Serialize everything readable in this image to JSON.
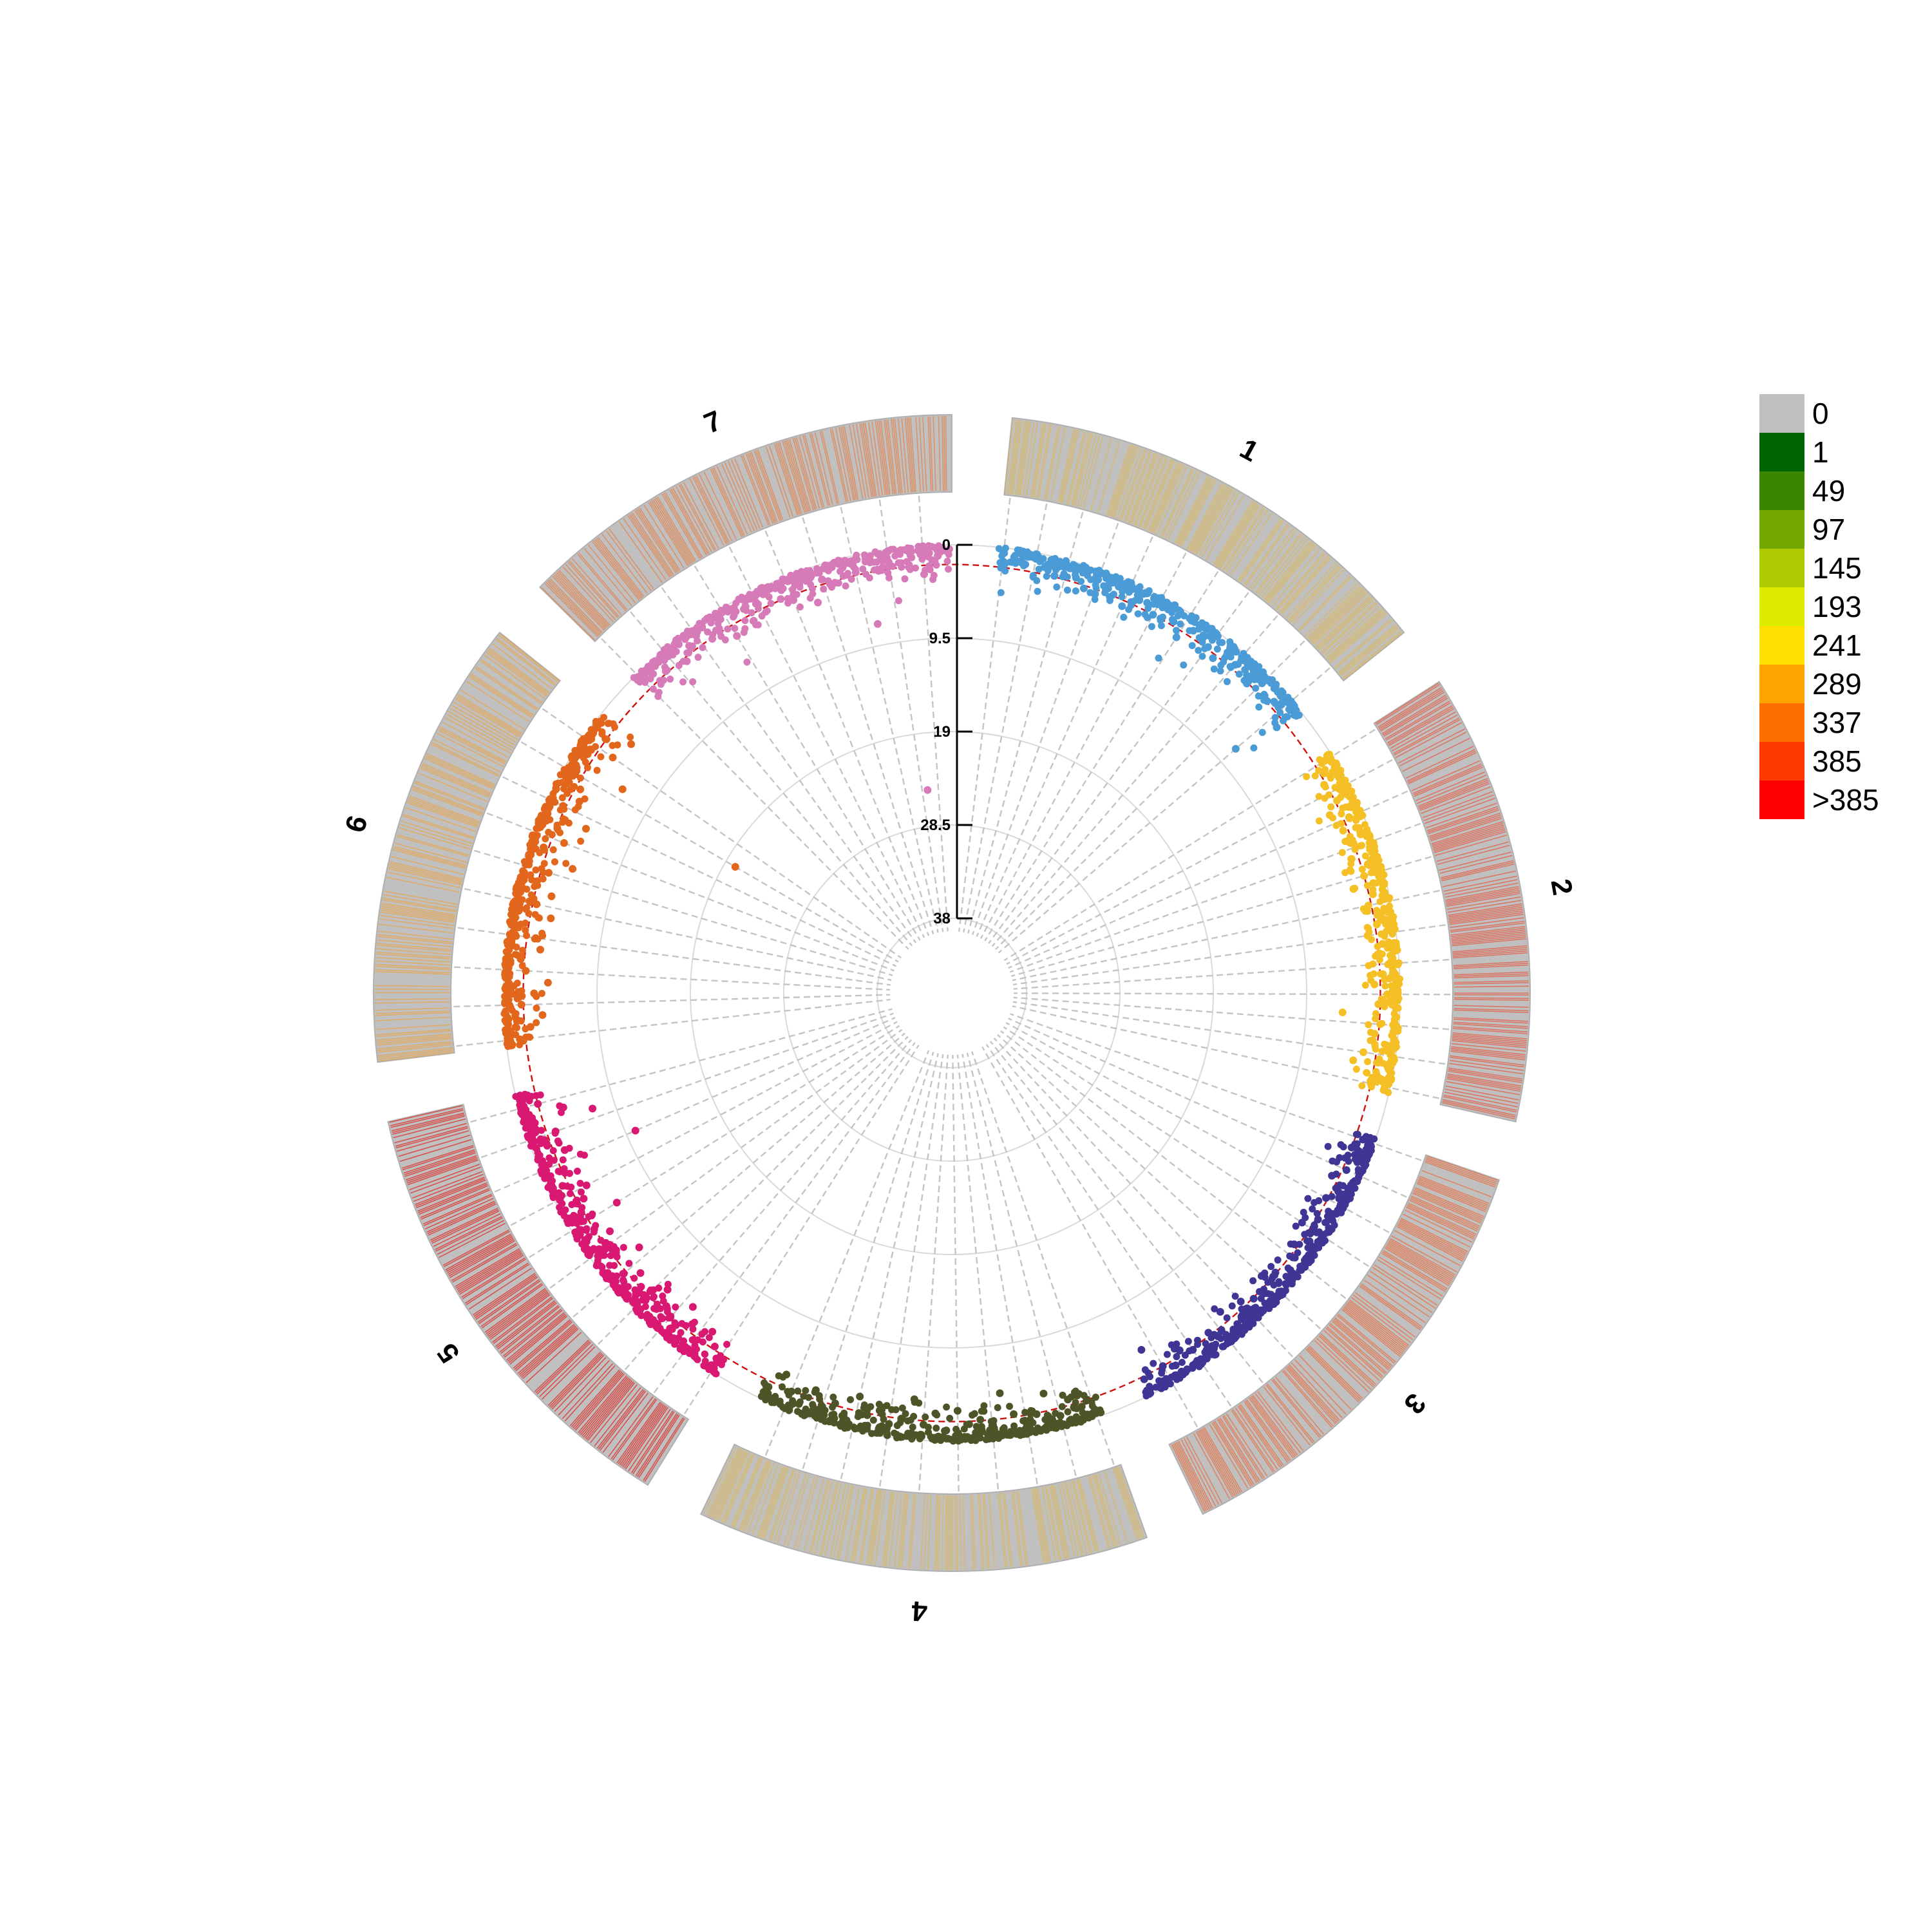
{
  "chart_data": {
    "type": "scatter",
    "subtype": "circular-manhattan",
    "title": "",
    "chromosomes": [
      {
        "name": "1",
        "color": "#4A9BD6",
        "density_color": "#D9B968"
      },
      {
        "name": "2",
        "color": "#F5C026",
        "density_color": "#E06A56"
      },
      {
        "name": "3",
        "color": "#3F3595",
        "density_color": "#E47A52"
      },
      {
        "name": "4",
        "color": "#4F5428",
        "density_color": "#D9B968"
      },
      {
        "name": "5",
        "color": "#D91872",
        "density_color": "#DA3F3A"
      },
      {
        "name": "6",
        "color": "#E2661C",
        "density_color": "#E4A85A"
      },
      {
        "name": "7",
        "color": "#D67BB8",
        "density_color": "#E08A5A"
      }
    ],
    "y_axis": {
      "ticks": [
        "0",
        "9.5",
        "19",
        "28.5",
        "38"
      ],
      "ylim": [
        0,
        38
      ],
      "inverted": true
    },
    "threshold": 2,
    "series": [
      {
        "name": "1",
        "values": [
          0.4,
          0.8,
          1.3,
          0.6,
          1.1,
          1.9,
          0.7,
          1.5,
          2.3,
          1.0,
          1.7,
          0.9,
          2.6,
          1.4,
          1.2,
          2.0,
          0.8,
          1.6,
          2.8,
          1.3,
          1.1,
          1.8,
          2.4,
          0.9,
          1.5,
          1.2,
          2.1,
          1.0,
          1.7,
          1.4,
          7.5,
          2.9
        ]
      },
      {
        "name": "2",
        "values": [
          0.9,
          1.6,
          2.2,
          1.1,
          1.8,
          3.1,
          1.4,
          2.5,
          1.0,
          1.9,
          2.7,
          1.3,
          2.0,
          3.4,
          1.6,
          2.3,
          1.2,
          1.8,
          2.9,
          1.5,
          2.1,
          1.0,
          1.7,
          2.6,
          1.3,
          2.2,
          5.8,
          1.9,
          2.4,
          1.1,
          3.3,
          4.2,
          1.6,
          2.0
        ]
      },
      {
        "name": "3",
        "values": [
          1.2,
          2.0,
          0.9,
          1.6,
          2.7,
          1.4,
          2.2,
          1.0,
          1.8,
          3.0,
          1.3,
          2.4,
          1.7,
          1.1,
          2.1,
          2.9,
          1.5,
          1.9,
          2.6,
          1.2,
          3.2,
          1.6,
          2.3,
          1.0,
          1.8,
          2.5,
          1.4,
          2.0,
          4.5,
          1.7
        ]
      },
      {
        "name": "4",
        "values": [
          0.8,
          1.5,
          2.6,
          1.2,
          3.8,
          1.9,
          1.0,
          2.3,
          4.6,
          1.4,
          2.1,
          1.7,
          3.1,
          1.1,
          2.8,
          1.6,
          4.1,
          2.0,
          1.3,
          2.5,
          1.8,
          3.5,
          1.2,
          2.2,
          1.5,
          2.9,
          1.0,
          1.9,
          3.3,
          1.4
        ]
      },
      {
        "name": "5",
        "values": [
          1.1,
          2.3,
          3.4,
          1.6,
          2.8,
          4.2,
          1.9,
          2.5,
          3.8,
          1.3,
          2.1,
          3.0,
          1.7,
          4.6,
          2.4,
          1.5,
          3.2,
          2.0,
          5.4,
          1.8,
          2.7,
          3.6,
          1.4,
          2.2,
          10.5,
          3.1,
          1.6,
          2.9,
          7.2,
          4.4,
          2.0,
          1.2
        ]
      },
      {
        "name": "6",
        "values": [
          1.4,
          2.6,
          3.9,
          1.8,
          3.1,
          4.5,
          2.2,
          1.6,
          3.5,
          2.9,
          1.2,
          4.1,
          2.4,
          3.7,
          1.9,
          2.8,
          5.0,
          1.5,
          3.3,
          2.1,
          4.8,
          1.7,
          3.0,
          2.5,
          20.1,
          6.2,
          1.3,
          3.6,
          2.0,
          4.3
        ]
      },
      {
        "name": "7",
        "values": [
          0.5,
          1.1,
          1.8,
          0.8,
          2.4,
          1.3,
          0.9,
          2.1,
          1.6,
          3.2,
          1.0,
          2.7,
          1.4,
          0.7,
          1.9,
          2.5,
          1.2,
          3.6,
          1.5,
          2.2,
          0.9,
          1.7,
          7.3,
          2.0,
          1.3,
          24.8,
          1.1,
          2.9,
          1.6,
          0.6
        ]
      }
    ],
    "legend": {
      "placement": "right",
      "items": [
        {
          "label": "0",
          "color": "#C0C0C0"
        },
        {
          "label": "1",
          "color": "#006400"
        },
        {
          "label": "49",
          "color": "#3A8600"
        },
        {
          "label": "97",
          "color": "#72A800"
        },
        {
          "label": "145",
          "color": "#AECA00"
        },
        {
          "label": "193",
          "color": "#DEEC00"
        },
        {
          "label": "241",
          "color": "#FFE000"
        },
        {
          "label": "289",
          "color": "#FFA500"
        },
        {
          "label": "337",
          "color": "#FF6E00"
        },
        {
          "label": "385",
          "color": "#FF3A00"
        },
        {
          "label": ">385",
          "color": "#FF0000"
        }
      ]
    },
    "grid": true
  }
}
